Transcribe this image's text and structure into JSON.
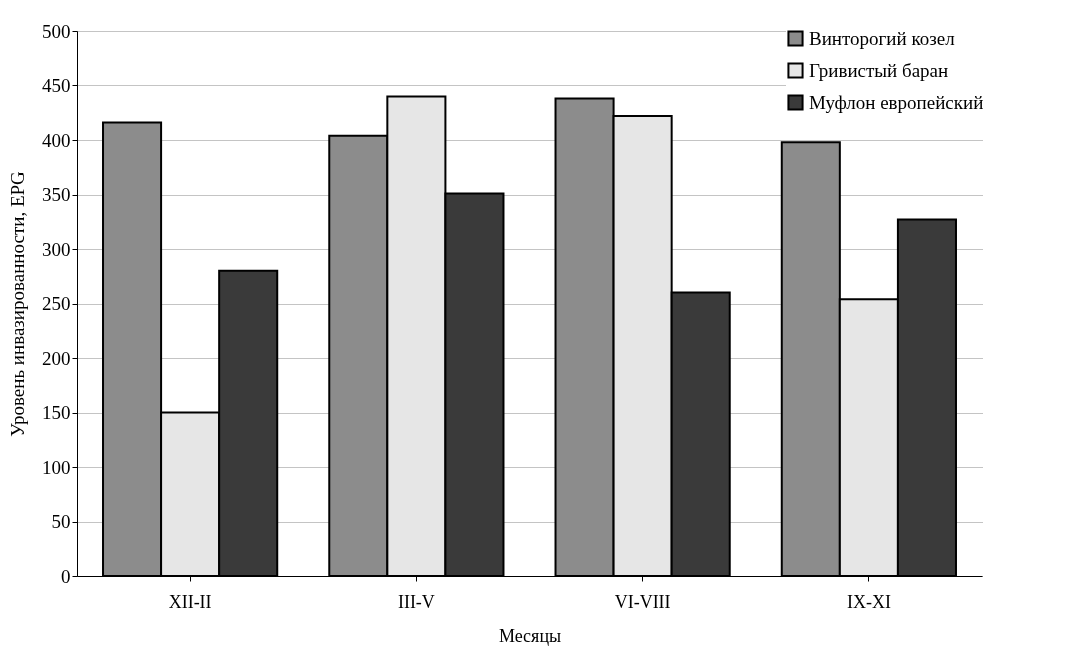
{
  "chart_data": {
    "type": "bar",
    "xlabel": "Месяцы",
    "ylabel": "Уровень инвазированности, EPG",
    "categories": [
      "XII-II",
      "III-V",
      "VI-VIII",
      "IX-XI"
    ],
    "series": [
      {
        "name": "Винторогий козел",
        "color": "#8c8c8c",
        "values": [
          416,
          404,
          438,
          398
        ]
      },
      {
        "name": "Гривистый баран",
        "color": "#e6e6e6",
        "values": [
          150,
          440,
          422,
          254
        ]
      },
      {
        "name": "Муфлон европейский",
        "color": "#3a3a3a",
        "values": [
          280,
          351,
          260,
          327
        ]
      }
    ],
    "ylim": [
      0,
      500
    ],
    "yticks": [
      0,
      50,
      100,
      150,
      200,
      250,
      300,
      350,
      400,
      450,
      500
    ],
    "grid": "y",
    "legend": "top right"
  }
}
